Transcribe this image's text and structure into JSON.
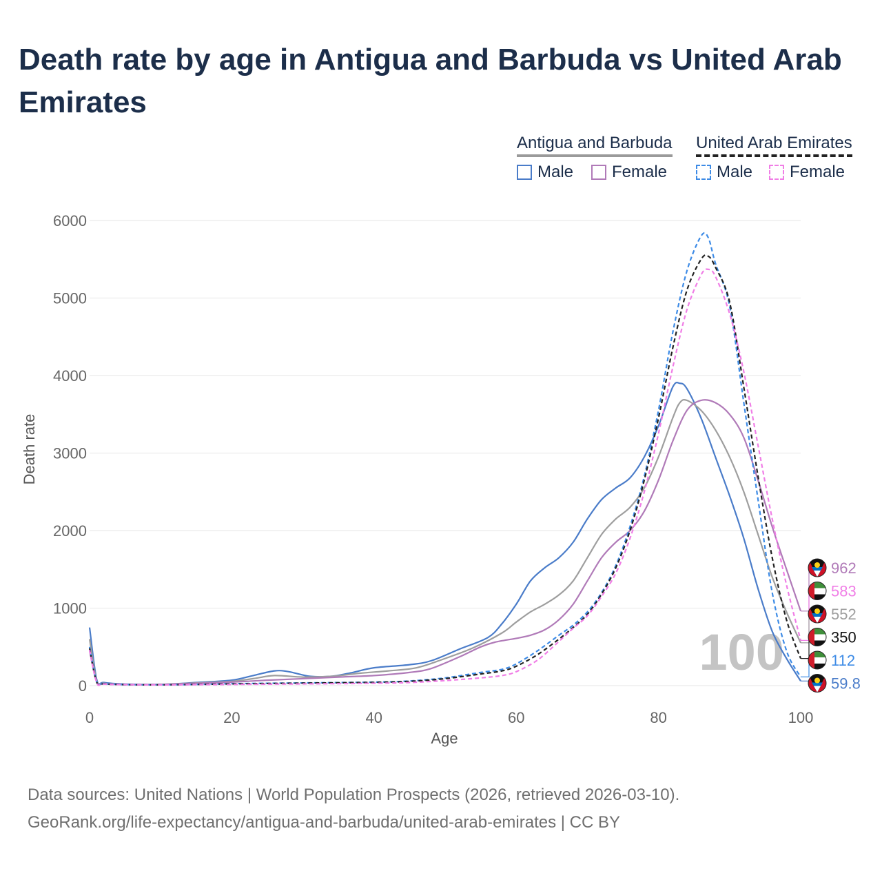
{
  "title": "Death rate by age in Antigua and Barbuda vs United Arab Emirates",
  "legend": {
    "countries": [
      {
        "name": "Antigua and Barbuda",
        "style": "solid"
      },
      {
        "name": "United Arab Emirates",
        "style": "dashed"
      }
    ],
    "items": [
      {
        "label": "Male",
        "color": "#4a7cc9",
        "style": "solid"
      },
      {
        "label": "Female",
        "color": "#b07ab8",
        "style": "solid"
      },
      {
        "label": "Male",
        "color": "#3d8be6",
        "style": "dashed"
      },
      {
        "label": "Female",
        "color": "#f07ee6",
        "style": "dashed"
      }
    ]
  },
  "watermark": "100",
  "footer": {
    "source": "Data sources: United Nations | World Population Prospects (2026, retrieved 2026-03-10).",
    "link": "GeoRank.org/life-expectancy/antigua-and-barbuda/united-arab-emirates | CC BY"
  },
  "chart_data": {
    "type": "line",
    "xlabel": "Age",
    "ylabel": "Death rate",
    "xlim": [
      0,
      100
    ],
    "ylim": [
      0,
      6000
    ],
    "xticks": [
      0,
      20,
      40,
      60,
      80,
      100
    ],
    "yticks": [
      0,
      1000,
      2000,
      3000,
      4000,
      5000,
      6000
    ],
    "grid": true,
    "series": [
      {
        "name": "Antigua and Barbuda Male",
        "color": "#4a7cc9",
        "dash": false,
        "end_label": "59.8",
        "points": [
          [
            0,
            750
          ],
          [
            1,
            80
          ],
          [
            2,
            40
          ],
          [
            5,
            20
          ],
          [
            10,
            15
          ],
          [
            15,
            40
          ],
          [
            20,
            70
          ],
          [
            23,
            130
          ],
          [
            26,
            190
          ],
          [
            28,
            180
          ],
          [
            31,
            120
          ],
          [
            34,
            120
          ],
          [
            37,
            170
          ],
          [
            40,
            230
          ],
          [
            45,
            270
          ],
          [
            48,
            320
          ],
          [
            52,
            470
          ],
          [
            56,
            620
          ],
          [
            58,
            800
          ],
          [
            60,
            1050
          ],
          [
            62,
            1350
          ],
          [
            64,
            1520
          ],
          [
            66,
            1650
          ],
          [
            68,
            1850
          ],
          [
            70,
            2150
          ],
          [
            72,
            2400
          ],
          [
            74,
            2550
          ],
          [
            76,
            2680
          ],
          [
            78,
            2950
          ],
          [
            80,
            3350
          ],
          [
            82,
            3850
          ],
          [
            83,
            3900
          ],
          [
            84,
            3830
          ],
          [
            86,
            3450
          ],
          [
            88,
            2950
          ],
          [
            90,
            2450
          ],
          [
            92,
            1900
          ],
          [
            94,
            1250
          ],
          [
            96,
            700
          ],
          [
            98,
            350
          ],
          [
            100,
            60
          ]
        ]
      },
      {
        "name": "Antigua and Barbuda Total",
        "color": "#9e9e9e",
        "dash": false,
        "end_label": "552",
        "points": [
          [
            0,
            600
          ],
          [
            1,
            60
          ],
          [
            2,
            30
          ],
          [
            5,
            15
          ],
          [
            10,
            15
          ],
          [
            15,
            35
          ],
          [
            20,
            55
          ],
          [
            23,
            90
          ],
          [
            26,
            130
          ],
          [
            30,
            110
          ],
          [
            34,
            120
          ],
          [
            38,
            160
          ],
          [
            42,
            190
          ],
          [
            46,
            230
          ],
          [
            50,
            350
          ],
          [
            54,
            490
          ],
          [
            58,
            680
          ],
          [
            60,
            820
          ],
          [
            62,
            950
          ],
          [
            64,
            1050
          ],
          [
            66,
            1170
          ],
          [
            68,
            1350
          ],
          [
            70,
            1650
          ],
          [
            72,
            1950
          ],
          [
            74,
            2150
          ],
          [
            76,
            2300
          ],
          [
            78,
            2550
          ],
          [
            80,
            2950
          ],
          [
            82,
            3450
          ],
          [
            83,
            3650
          ],
          [
            84,
            3680
          ],
          [
            86,
            3550
          ],
          [
            88,
            3300
          ],
          [
            90,
            2950
          ],
          [
            92,
            2500
          ],
          [
            94,
            1950
          ],
          [
            96,
            1400
          ],
          [
            98,
            950
          ],
          [
            100,
            552
          ]
        ]
      },
      {
        "name": "Antigua and Barbuda Female",
        "color": "#b07ab8",
        "dash": false,
        "end_label": "962",
        "points": [
          [
            0,
            450
          ],
          [
            1,
            50
          ],
          [
            2,
            25
          ],
          [
            5,
            15
          ],
          [
            10,
            15
          ],
          [
            15,
            30
          ],
          [
            20,
            45
          ],
          [
            25,
            70
          ],
          [
            30,
            90
          ],
          [
            35,
            110
          ],
          [
            40,
            130
          ],
          [
            45,
            170
          ],
          [
            48,
            220
          ],
          [
            52,
            370
          ],
          [
            55,
            500
          ],
          [
            57,
            560
          ],
          [
            60,
            610
          ],
          [
            62,
            650
          ],
          [
            64,
            720
          ],
          [
            66,
            850
          ],
          [
            68,
            1050
          ],
          [
            70,
            1350
          ],
          [
            72,
            1650
          ],
          [
            74,
            1850
          ],
          [
            76,
            2000
          ],
          [
            78,
            2250
          ],
          [
            80,
            2650
          ],
          [
            82,
            3150
          ],
          [
            84,
            3550
          ],
          [
            86,
            3680
          ],
          [
            88,
            3650
          ],
          [
            90,
            3500
          ],
          [
            92,
            3200
          ],
          [
            94,
            2650
          ],
          [
            96,
            2050
          ],
          [
            98,
            1500
          ],
          [
            100,
            962
          ]
        ]
      },
      {
        "name": "United Arab Emirates Male",
        "color": "#3d8be6",
        "dash": true,
        "end_label": "112",
        "points": [
          [
            0,
            500
          ],
          [
            1,
            50
          ],
          [
            2,
            25
          ],
          [
            5,
            12
          ],
          [
            10,
            10
          ],
          [
            15,
            15
          ],
          [
            20,
            25
          ],
          [
            30,
            35
          ],
          [
            40,
            45
          ],
          [
            45,
            60
          ],
          [
            50,
            100
          ],
          [
            55,
            170
          ],
          [
            58,
            210
          ],
          [
            60,
            280
          ],
          [
            63,
            450
          ],
          [
            66,
            650
          ],
          [
            68,
            780
          ],
          [
            70,
            950
          ],
          [
            72,
            1200
          ],
          [
            74,
            1550
          ],
          [
            76,
            2050
          ],
          [
            78,
            2700
          ],
          [
            80,
            3550
          ],
          [
            82,
            4550
          ],
          [
            84,
            5350
          ],
          [
            86,
            5800
          ],
          [
            87,
            5780
          ],
          [
            88,
            5450
          ],
          [
            90,
            4900
          ],
          [
            92,
            3650
          ],
          [
            94,
            2400
          ],
          [
            96,
            1200
          ],
          [
            98,
            450
          ],
          [
            100,
            112
          ]
        ]
      },
      {
        "name": "United Arab Emirates Total",
        "color": "#222222",
        "dash": true,
        "end_label": "350",
        "points": [
          [
            0,
            480
          ],
          [
            1,
            45
          ],
          [
            2,
            22
          ],
          [
            5,
            12
          ],
          [
            10,
            10
          ],
          [
            15,
            15
          ],
          [
            20,
            22
          ],
          [
            30,
            32
          ],
          [
            40,
            42
          ],
          [
            45,
            55
          ],
          [
            50,
            90
          ],
          [
            55,
            150
          ],
          [
            58,
            190
          ],
          [
            60,
            250
          ],
          [
            63,
            400
          ],
          [
            66,
            600
          ],
          [
            68,
            750
          ],
          [
            70,
            920
          ],
          [
            72,
            1180
          ],
          [
            74,
            1520
          ],
          [
            76,
            2000
          ],
          [
            78,
            2650
          ],
          [
            80,
            3450
          ],
          [
            82,
            4350
          ],
          [
            84,
            5100
          ],
          [
            86,
            5500
          ],
          [
            87,
            5540
          ],
          [
            88,
            5400
          ],
          [
            90,
            4950
          ],
          [
            92,
            3850
          ],
          [
            94,
            2700
          ],
          [
            96,
            1650
          ],
          [
            98,
            850
          ],
          [
            100,
            350
          ]
        ]
      },
      {
        "name": "United Arab Emirates Female",
        "color": "#f07ee6",
        "dash": true,
        "end_label": "583",
        "points": [
          [
            0,
            460
          ],
          [
            1,
            40
          ],
          [
            2,
            20
          ],
          [
            5,
            12
          ],
          [
            10,
            10
          ],
          [
            15,
            12
          ],
          [
            20,
            15
          ],
          [
            30,
            22
          ],
          [
            40,
            30
          ],
          [
            45,
            40
          ],
          [
            50,
            65
          ],
          [
            55,
            100
          ],
          [
            58,
            130
          ],
          [
            60,
            180
          ],
          [
            63,
            330
          ],
          [
            66,
            570
          ],
          [
            68,
            740
          ],
          [
            70,
            900
          ],
          [
            72,
            1150
          ],
          [
            74,
            1450
          ],
          [
            76,
            1900
          ],
          [
            78,
            2500
          ],
          [
            80,
            3250
          ],
          [
            82,
            4100
          ],
          [
            84,
            4850
          ],
          [
            86,
            5300
          ],
          [
            87,
            5370
          ],
          [
            88,
            5280
          ],
          [
            90,
            4800
          ],
          [
            92,
            4050
          ],
          [
            94,
            3100
          ],
          [
            96,
            2150
          ],
          [
            98,
            1300
          ],
          [
            100,
            583
          ]
        ]
      }
    ]
  }
}
